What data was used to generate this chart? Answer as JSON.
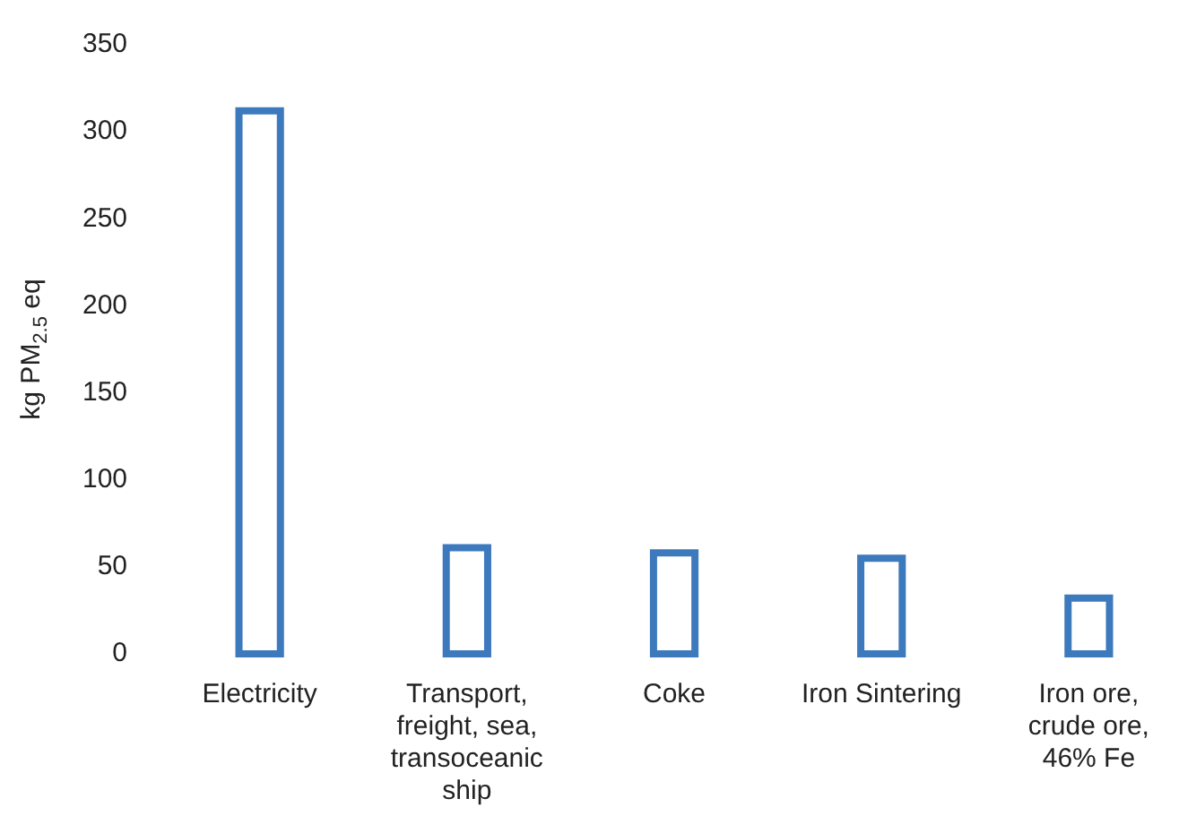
{
  "chart_data": {
    "type": "bar",
    "ylabel": "kg PM$_{2.5}$ eq",
    "categories": [
      "Electricity",
      "Transport, freight, sea, transoceanic ship",
      "Coke",
      "Iron Sintering",
      "Iron ore, crude ore, 46% Fe"
    ],
    "values": [
      312,
      61,
      58,
      55,
      32
    ],
    "color": "#3d79bd",
    "ylim": [
      0,
      350
    ],
    "yticks": [
      0,
      50,
      100,
      150,
      200,
      250,
      300,
      350
    ],
    "grid": false,
    "legend": false
  }
}
